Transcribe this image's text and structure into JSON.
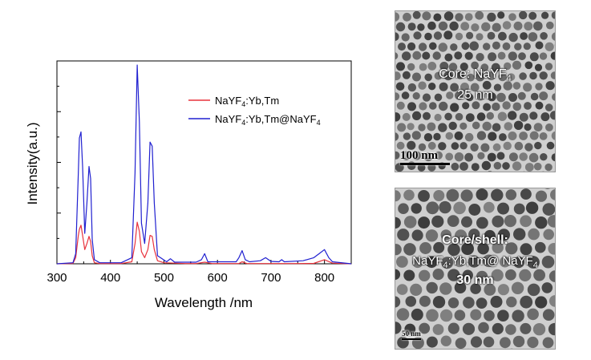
{
  "chart_data": {
    "type": "line",
    "xlabel": "Wavelength /nm",
    "ylabel": "Intensity(a.u.)",
    "xlim": [
      300,
      850
    ],
    "ylim": [
      0,
      100
    ],
    "xticks": [
      "300",
      "400",
      "500",
      "600",
      "700",
      "800"
    ],
    "legend_position": "top-right",
    "series": [
      {
        "name_parts": [
          "NaYF",
          "4",
          ":Yb,Tm"
        ],
        "color": "#e8323c",
        "x": [
          300,
          330,
          335,
          340,
          342,
          345,
          348,
          352,
          356,
          360,
          363,
          366,
          370,
          380,
          420,
          440,
          446,
          450,
          454,
          458,
          464,
          470,
          474,
          478,
          482,
          488,
          500,
          540,
          560,
          576,
          590,
          640,
          646,
          655,
          680,
          700,
          750,
          780,
          800,
          815,
          850
        ],
        "y": [
          0,
          0.2,
          3,
          14,
          17,
          19,
          14,
          7,
          10,
          13.5,
          11,
          4,
          0.5,
          0.1,
          0.1,
          1,
          10,
          20.5,
          16,
          6,
          3,
          7,
          14,
          13.5,
          7,
          1.5,
          0.5,
          0.1,
          0.1,
          0.8,
          0.1,
          0.1,
          1,
          0.1,
          0.1,
          0.1,
          0.1,
          0.2,
          2,
          0.3,
          0
        ]
      },
      {
        "name_parts": [
          "NaYF",
          "4",
          ":Yb,Tm@NaYF",
          "4"
        ],
        "color": "#2020d0",
        "x": [
          300,
          330,
          335,
          340,
          342,
          345,
          348,
          352,
          356,
          360,
          363,
          366,
          370,
          380,
          420,
          440,
          446,
          450,
          454,
          458,
          464,
          470,
          474,
          478,
          482,
          488,
          505,
          512,
          520,
          560,
          570,
          576,
          582,
          600,
          635,
          640,
          646,
          652,
          660,
          680,
          690,
          700,
          715,
          720,
          725,
          760,
          780,
          790,
          800,
          808,
          815,
          850
        ],
        "y": [
          0,
          0.5,
          5,
          45,
          62,
          65,
          48,
          15,
          30,
          48,
          42,
          12,
          2,
          0.5,
          0.5,
          3,
          45,
          98,
          70,
          20,
          10,
          30,
          60,
          58,
          30,
          4,
          1,
          2.5,
          0.8,
          0.8,
          2,
          5,
          1,
          1,
          1,
          3,
          6.5,
          2,
          1,
          1.5,
          3,
          1.2,
          1,
          2,
          1,
          1.5,
          3,
          5,
          7,
          3,
          1,
          0
        ]
      }
    ]
  },
  "tem_core": {
    "title": "Core: NaYF",
    "title_sub": "4",
    "size": "25 nm",
    "scale": "100 nm"
  },
  "tem_shell": {
    "title": "Core/shell:",
    "composition_parts": [
      "NaYF",
      "4",
      ":Yb,Tm@ NaYF",
      "4"
    ],
    "size": "30 nm",
    "scale": "50 nm"
  }
}
